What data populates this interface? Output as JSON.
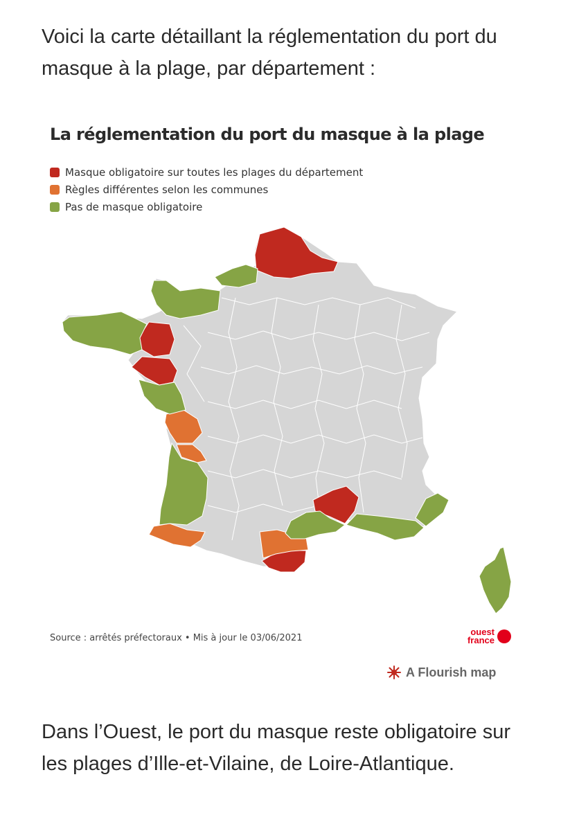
{
  "article": {
    "intro": "Voici la carte détaillant la réglementation du port du masque à la plage, par département :",
    "outro": "Dans l’Ouest, le port du masque reste obligatoire sur les plages d’Ille-et-Vilaine, de Loire-Atlantique."
  },
  "map": {
    "title": "La réglementation du port du masque à la plage",
    "legend": [
      {
        "label": "Masque obligatoire sur toutes les plages du département",
        "color": "#c0291f"
      },
      {
        "label": "Règles différentes selon les communes",
        "color": "#e07232"
      },
      {
        "label": "Pas de masque obligatoire",
        "color": "#86a445"
      }
    ],
    "base_color": "#d6d6d6",
    "source": "Source : arrêtés préfectoraux • Mis à jour le 03/06/2021",
    "logo": {
      "line1": "ouest",
      "line2": "france"
    },
    "flourish_label": "A Flourish map"
  }
}
